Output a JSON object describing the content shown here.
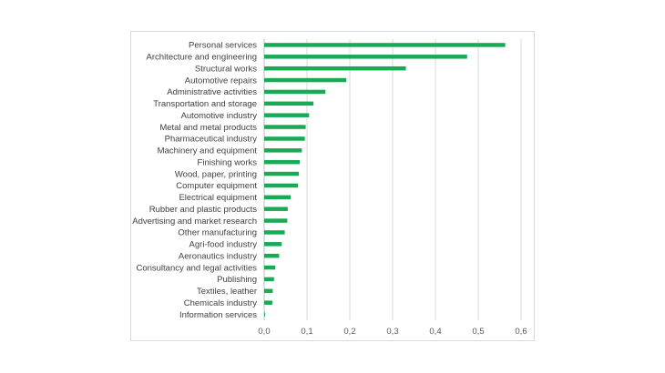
{
  "chart_data": {
    "type": "bar",
    "orientation": "horizontal",
    "title": "",
    "xlabel": "",
    "ylabel": "",
    "categories": [
      "Personal services",
      "Architecture and engineering",
      "Structural works",
      "Automotive repairs",
      "Administrative activities",
      "Transportation and storage",
      "Automotive industry",
      "Metal and metal products",
      "Pharmaceutical industry",
      "Machinery and equipment",
      "Finishing works",
      "Wood, paper, printing",
      "Computer equipment",
      "Electrical equipment",
      "Rubber and plastic products",
      "Advertising and market research",
      "Other manufacturing",
      "Agri-food industry",
      "Aeronautics industry",
      "Consultancy and legal activities",
      "Publishing",
      "Textiles, leather",
      "Chemicals industry",
      "Information services"
    ],
    "values": [
      0.563,
      0.474,
      0.331,
      0.192,
      0.143,
      0.115,
      0.105,
      0.097,
      0.095,
      0.088,
      0.083,
      0.081,
      0.079,
      0.062,
      0.055,
      0.054,
      0.048,
      0.041,
      0.035,
      0.026,
      0.023,
      0.02,
      0.019,
      0.002
    ],
    "xlim": [
      0,
      0.6
    ],
    "xticks": [
      "0,0",
      "0,1",
      "0,2",
      "0,3",
      "0,4",
      "0,5",
      "0,6"
    ],
    "xtick_values": [
      0,
      0.1,
      0.2,
      0.3,
      0.4,
      0.5,
      0.6
    ],
    "grid": "vertical",
    "legend": "none",
    "bar_color": "#1aaa55",
    "grid_color": "#d9d9d9"
  }
}
